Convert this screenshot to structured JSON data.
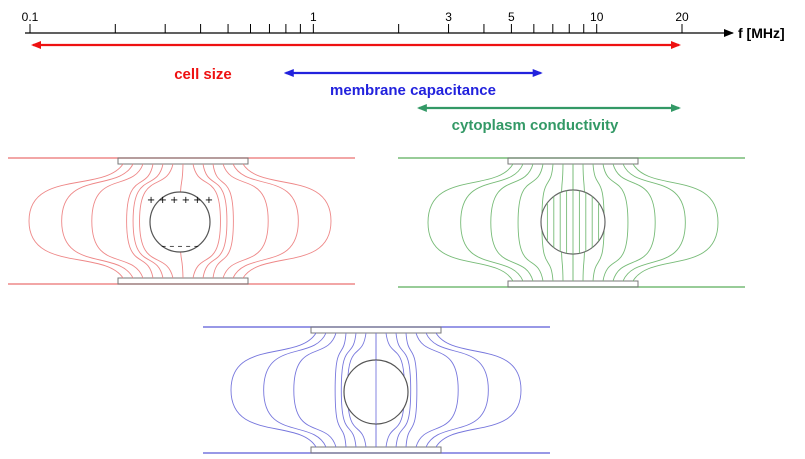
{
  "axis": {
    "unit_label": "f [MHz]",
    "ticks": [
      {
        "value": 0.1,
        "label": "0.1"
      },
      {
        "value": 0.2
      },
      {
        "value": 0.3
      },
      {
        "value": 0.4
      },
      {
        "value": 0.5
      },
      {
        "value": 0.6
      },
      {
        "value": 0.7
      },
      {
        "value": 0.8
      },
      {
        "value": 0.9
      },
      {
        "value": 1,
        "label": "1"
      },
      {
        "value": 2
      },
      {
        "value": 3,
        "label": "3"
      },
      {
        "value": 4
      },
      {
        "value": 5,
        "label": "5"
      },
      {
        "value": 6
      },
      {
        "value": 7
      },
      {
        "value": 8
      },
      {
        "value": 9
      },
      {
        "value": 10,
        "label": "10"
      },
      {
        "value": 20,
        "label": "20"
      }
    ]
  },
  "ranges": [
    {
      "label": "cell size",
      "from": 0.1,
      "to": 20,
      "color": "#ee1111"
    },
    {
      "label": "membrane capacitance",
      "from": 0.78,
      "to": 6.5,
      "color": "#2222dd"
    },
    {
      "label": "cytoplasm conductivity",
      "from": 2.3,
      "to": 20,
      "color": "#339966"
    }
  ],
  "panels": [
    {
      "name": "cell-size-field-panel",
      "color": "#ee8888",
      "cell_stroke": "#555555",
      "field_pattern": "blocked",
      "charges_top": "+ + + + + +",
      "charges_bottom": "– – – – –"
    },
    {
      "name": "cytoplasm-field-panel",
      "color": "#77bb77",
      "cell_stroke": "#666666",
      "field_pattern": "through"
    },
    {
      "name": "membrane-field-panel",
      "color": "#7777dd",
      "cell_stroke": "#555555",
      "field_pattern": "partial"
    }
  ]
}
